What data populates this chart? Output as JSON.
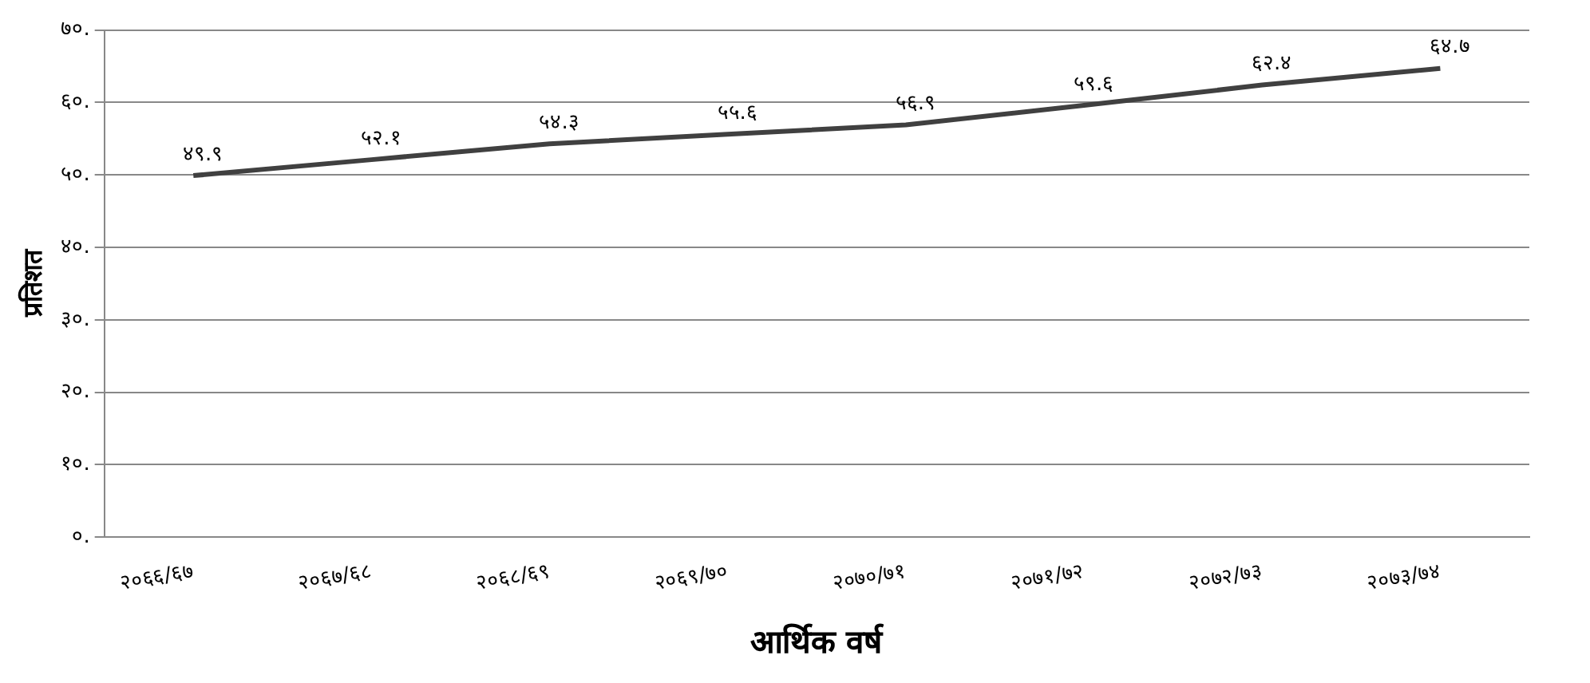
{
  "chart_data": {
    "type": "line",
    "xlabel": "आर्थिक वर्ष",
    "ylabel": "प्रतिशत",
    "categories": [
      "२०६६/६७",
      "२०६७/६८",
      "२०६८/६९",
      "२०६९/७०",
      "२०७०/७१",
      "२०७१/७२",
      "२०७२/७३",
      "२०७३/७४"
    ],
    "series": [
      {
        "color": "#404040",
        "values": [
          49.9,
          52.1,
          54.3,
          55.6,
          56.9,
          59.6,
          62.4,
          64.7
        ],
        "value_labels": [
          "४९.९",
          "५२.१",
          "५४.३",
          "५५.६",
          "५६.९",
          "५९.६",
          "६२.४",
          "६४.७"
        ]
      }
    ],
    "ylim": [
      0,
      70
    ],
    "yticks": [
      {
        "value": 0,
        "label": "०."
      },
      {
        "value": 10,
        "label": "१०."
      },
      {
        "value": 20,
        "label": "२०."
      },
      {
        "value": 30,
        "label": "३०."
      },
      {
        "value": 40,
        "label": "४०."
      },
      {
        "value": 50,
        "label": "५०."
      },
      {
        "value": 60,
        "label": "६०."
      },
      {
        "value": 70,
        "label": "७०."
      }
    ],
    "grid": "y",
    "legend": false,
    "marker": "none",
    "line_style": "solid"
  }
}
